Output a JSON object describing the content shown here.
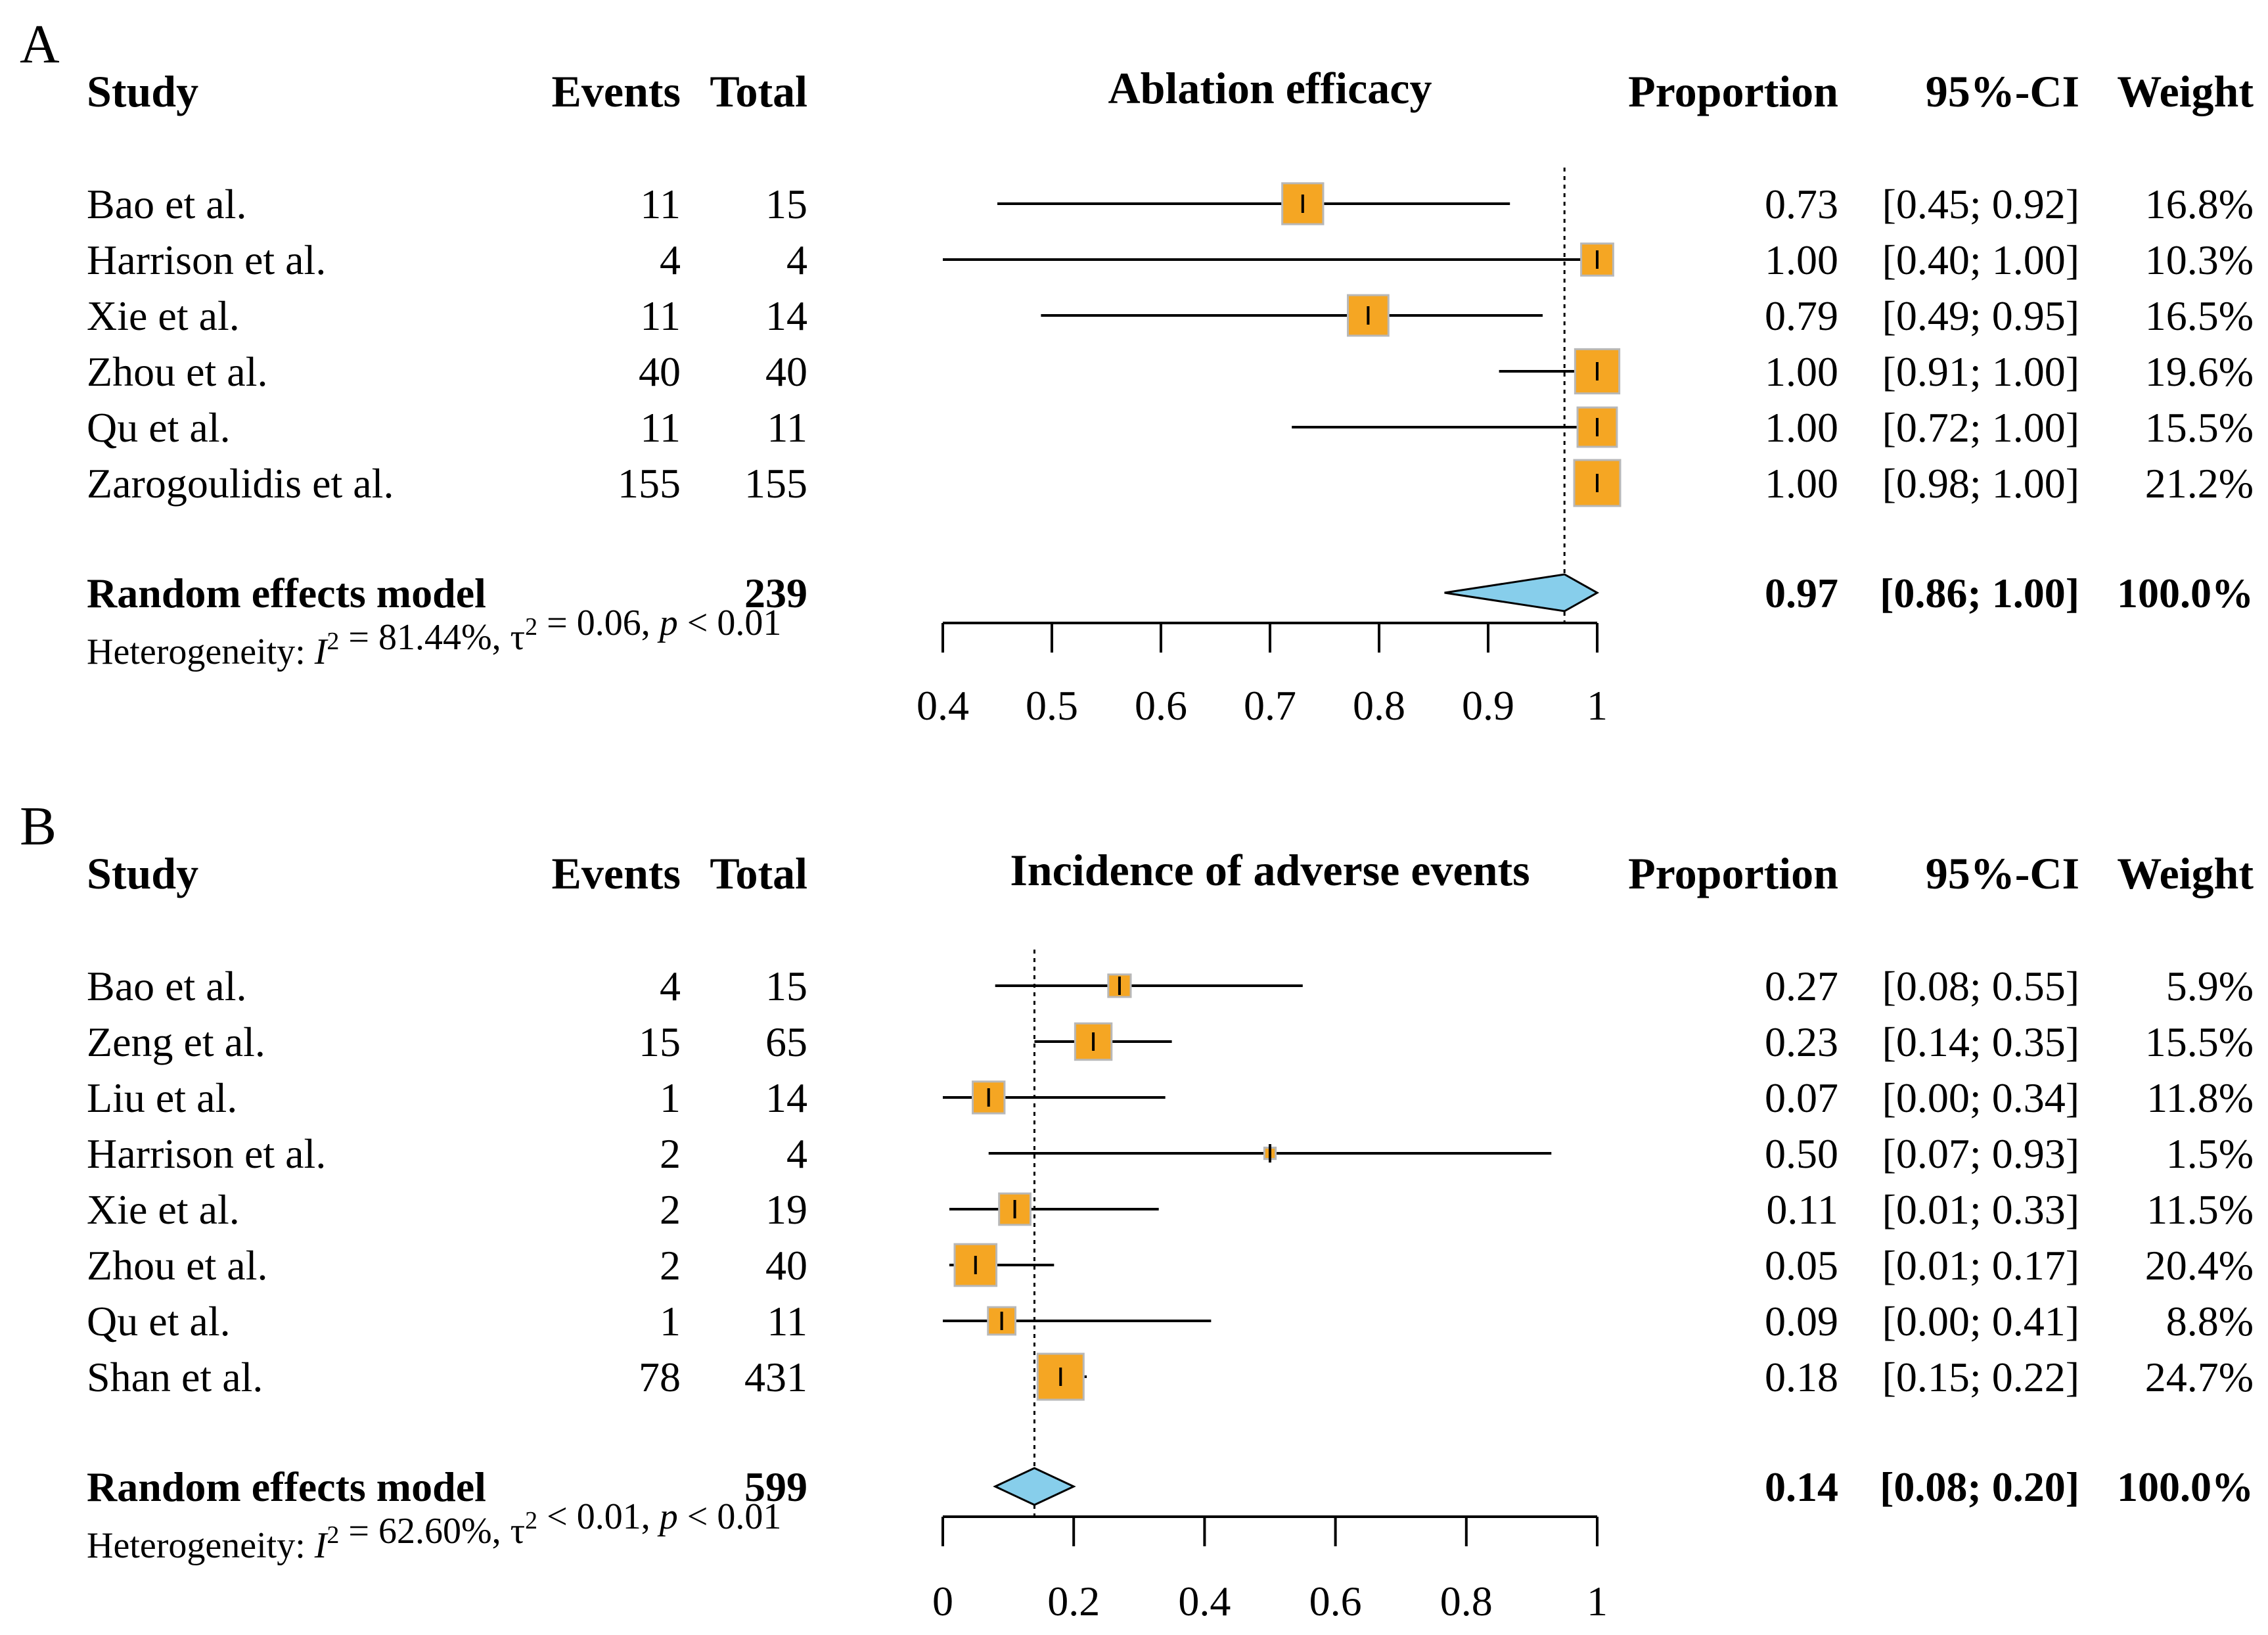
{
  "chart_data": [
    {
      "type": "forest",
      "panel": "A",
      "title": "Ablation efficacy",
      "columns": {
        "study": "Study",
        "events": "Events",
        "total": "Total",
        "proportion": "Proportion",
        "ci": "95%-CI",
        "weight": "Weight"
      },
      "studies": [
        {
          "name": "Bao et al.",
          "events": "11",
          "total": "15",
          "proportion": 0.73,
          "ci_low": 0.45,
          "ci_high": 0.92,
          "proportion_label": "0.73",
          "ci_label": "[0.45; 0.92]",
          "weight_pct": 16.8,
          "weight_label": "16.8%"
        },
        {
          "name": "Harrison et al.",
          "events": "4",
          "total": "4",
          "proportion": 1.0,
          "ci_low": 0.4,
          "ci_high": 1.0,
          "proportion_label": "1.00",
          "ci_label": "[0.40; 1.00]",
          "weight_pct": 10.3,
          "weight_label": "10.3%"
        },
        {
          "name": "Xie et al.",
          "events": "11",
          "total": "14",
          "proportion": 0.79,
          "ci_low": 0.49,
          "ci_high": 0.95,
          "proportion_label": "0.79",
          "ci_label": "[0.49; 0.95]",
          "weight_pct": 16.5,
          "weight_label": "16.5%"
        },
        {
          "name": "Zhou et al.",
          "events": "40",
          "total": "40",
          "proportion": 1.0,
          "ci_low": 0.91,
          "ci_high": 1.0,
          "proportion_label": "1.00",
          "ci_label": "[0.91; 1.00]",
          "weight_pct": 19.6,
          "weight_label": "19.6%"
        },
        {
          "name": "Qu et al.",
          "events": "11",
          "total": "11",
          "proportion": 1.0,
          "ci_low": 0.72,
          "ci_high": 1.0,
          "proportion_label": "1.00",
          "ci_label": "[0.72; 1.00]",
          "weight_pct": 15.5,
          "weight_label": "15.5%"
        },
        {
          "name": "Zarogoulidis et al.",
          "events": "155",
          "total": "155",
          "proportion": 1.0,
          "ci_low": 0.98,
          "ci_high": 1.0,
          "proportion_label": "1.00",
          "ci_label": "[0.98; 1.00]",
          "weight_pct": 21.2,
          "weight_label": "21.2%"
        }
      ],
      "summary": {
        "name": "Random effects model",
        "total": "239",
        "proportion": 0.97,
        "ci_low": 0.86,
        "ci_high": 1.0,
        "proportion_label": "0.97",
        "ci_label": "[0.86; 1.00]",
        "weight_label": "100.0%"
      },
      "heterogeneity": {
        "prefix": "Heterogeneity: ",
        "i_symbol": "I",
        "sq": "2",
        "i_text": " = 81.44%, ",
        "tau_symbol": "τ",
        "tau_text": " = 0.06, ",
        "p_symbol": "p",
        "p_text": " < 0.01"
      },
      "xlim": [
        0.4,
        1.0
      ],
      "ticks": [
        0.4,
        0.5,
        0.6,
        0.7,
        0.8,
        0.9,
        1.0
      ],
      "tick_labels": [
        "0.4",
        "0.5",
        "0.6",
        "0.7",
        "0.8",
        "0.9",
        "1"
      ],
      "reference_line": 0.97
    },
    {
      "type": "forest",
      "panel": "B",
      "title": "Incidence of adverse events",
      "columns": {
        "study": "Study",
        "events": "Events",
        "total": "Total",
        "proportion": "Proportion",
        "ci": "95%-CI",
        "weight": "Weight"
      },
      "studies": [
        {
          "name": "Bao et al.",
          "events": "4",
          "total": "15",
          "proportion": 0.27,
          "ci_low": 0.08,
          "ci_high": 0.55,
          "proportion_label": "0.27",
          "ci_label": "[0.08; 0.55]",
          "weight_pct": 5.9,
          "weight_label": "5.9%"
        },
        {
          "name": "Zeng et al.",
          "events": "15",
          "total": "65",
          "proportion": 0.23,
          "ci_low": 0.14,
          "ci_high": 0.35,
          "proportion_label": "0.23",
          "ci_label": "[0.14; 0.35]",
          "weight_pct": 15.5,
          "weight_label": "15.5%"
        },
        {
          "name": "Liu et al.",
          "events": "1",
          "total": "14",
          "proportion": 0.07,
          "ci_low": 0.0,
          "ci_high": 0.34,
          "proportion_label": "0.07",
          "ci_label": "[0.00; 0.34]",
          "weight_pct": 11.8,
          "weight_label": "11.8%"
        },
        {
          "name": "Harrison et al.",
          "events": "2",
          "total": "4",
          "proportion": 0.5,
          "ci_low": 0.07,
          "ci_high": 0.93,
          "proportion_label": "0.50",
          "ci_label": "[0.07; 0.93]",
          "weight_pct": 1.5,
          "weight_label": "1.5%"
        },
        {
          "name": "Xie et al.",
          "events": "2",
          "total": "19",
          "proportion": 0.11,
          "ci_low": 0.01,
          "ci_high": 0.33,
          "proportion_label": "0.11",
          "ci_label": "[0.01; 0.33]",
          "weight_pct": 11.5,
          "weight_label": "11.5%"
        },
        {
          "name": "Zhou et al.",
          "events": "2",
          "total": "40",
          "proportion": 0.05,
          "ci_low": 0.01,
          "ci_high": 0.17,
          "proportion_label": "0.05",
          "ci_label": "[0.01; 0.17]",
          "weight_pct": 20.4,
          "weight_label": "20.4%"
        },
        {
          "name": "Qu et al.",
          "events": "1",
          "total": "11",
          "proportion": 0.09,
          "ci_low": 0.0,
          "ci_high": 0.41,
          "proportion_label": "0.09",
          "ci_label": "[0.00; 0.41]",
          "weight_pct": 8.8,
          "weight_label": "8.8%"
        },
        {
          "name": "Shan et al.",
          "events": "78",
          "total": "431",
          "proportion": 0.18,
          "ci_low": 0.15,
          "ci_high": 0.22,
          "proportion_label": "0.18",
          "ci_label": "[0.15; 0.22]",
          "weight_pct": 24.7,
          "weight_label": "24.7%"
        }
      ],
      "summary": {
        "name": "Random effects model",
        "total": "599",
        "proportion": 0.14,
        "ci_low": 0.08,
        "ci_high": 0.2,
        "proportion_label": "0.14",
        "ci_label": "[0.08; 0.20]",
        "weight_label": "100.0%"
      },
      "heterogeneity": {
        "prefix": "Heterogeneity: ",
        "i_symbol": "I",
        "sq": "2",
        "i_text": " = 62.60%, ",
        "tau_symbol": "τ",
        "tau_text": " < 0.01, ",
        "p_symbol": "p",
        "p_text": " < 0.01"
      },
      "xlim": [
        0.0,
        1.0
      ],
      "ticks": [
        0.0,
        0.2,
        0.4,
        0.6,
        0.8,
        1.0
      ],
      "tick_labels": [
        "0",
        "0.2",
        "0.4",
        "0.6",
        "0.8",
        "1"
      ],
      "reference_line": 0.14
    }
  ],
  "colors": {
    "square": "#F5A623",
    "square_border": "#B8B8B8",
    "diamond": "#87CEEB",
    "line": "#000000"
  }
}
